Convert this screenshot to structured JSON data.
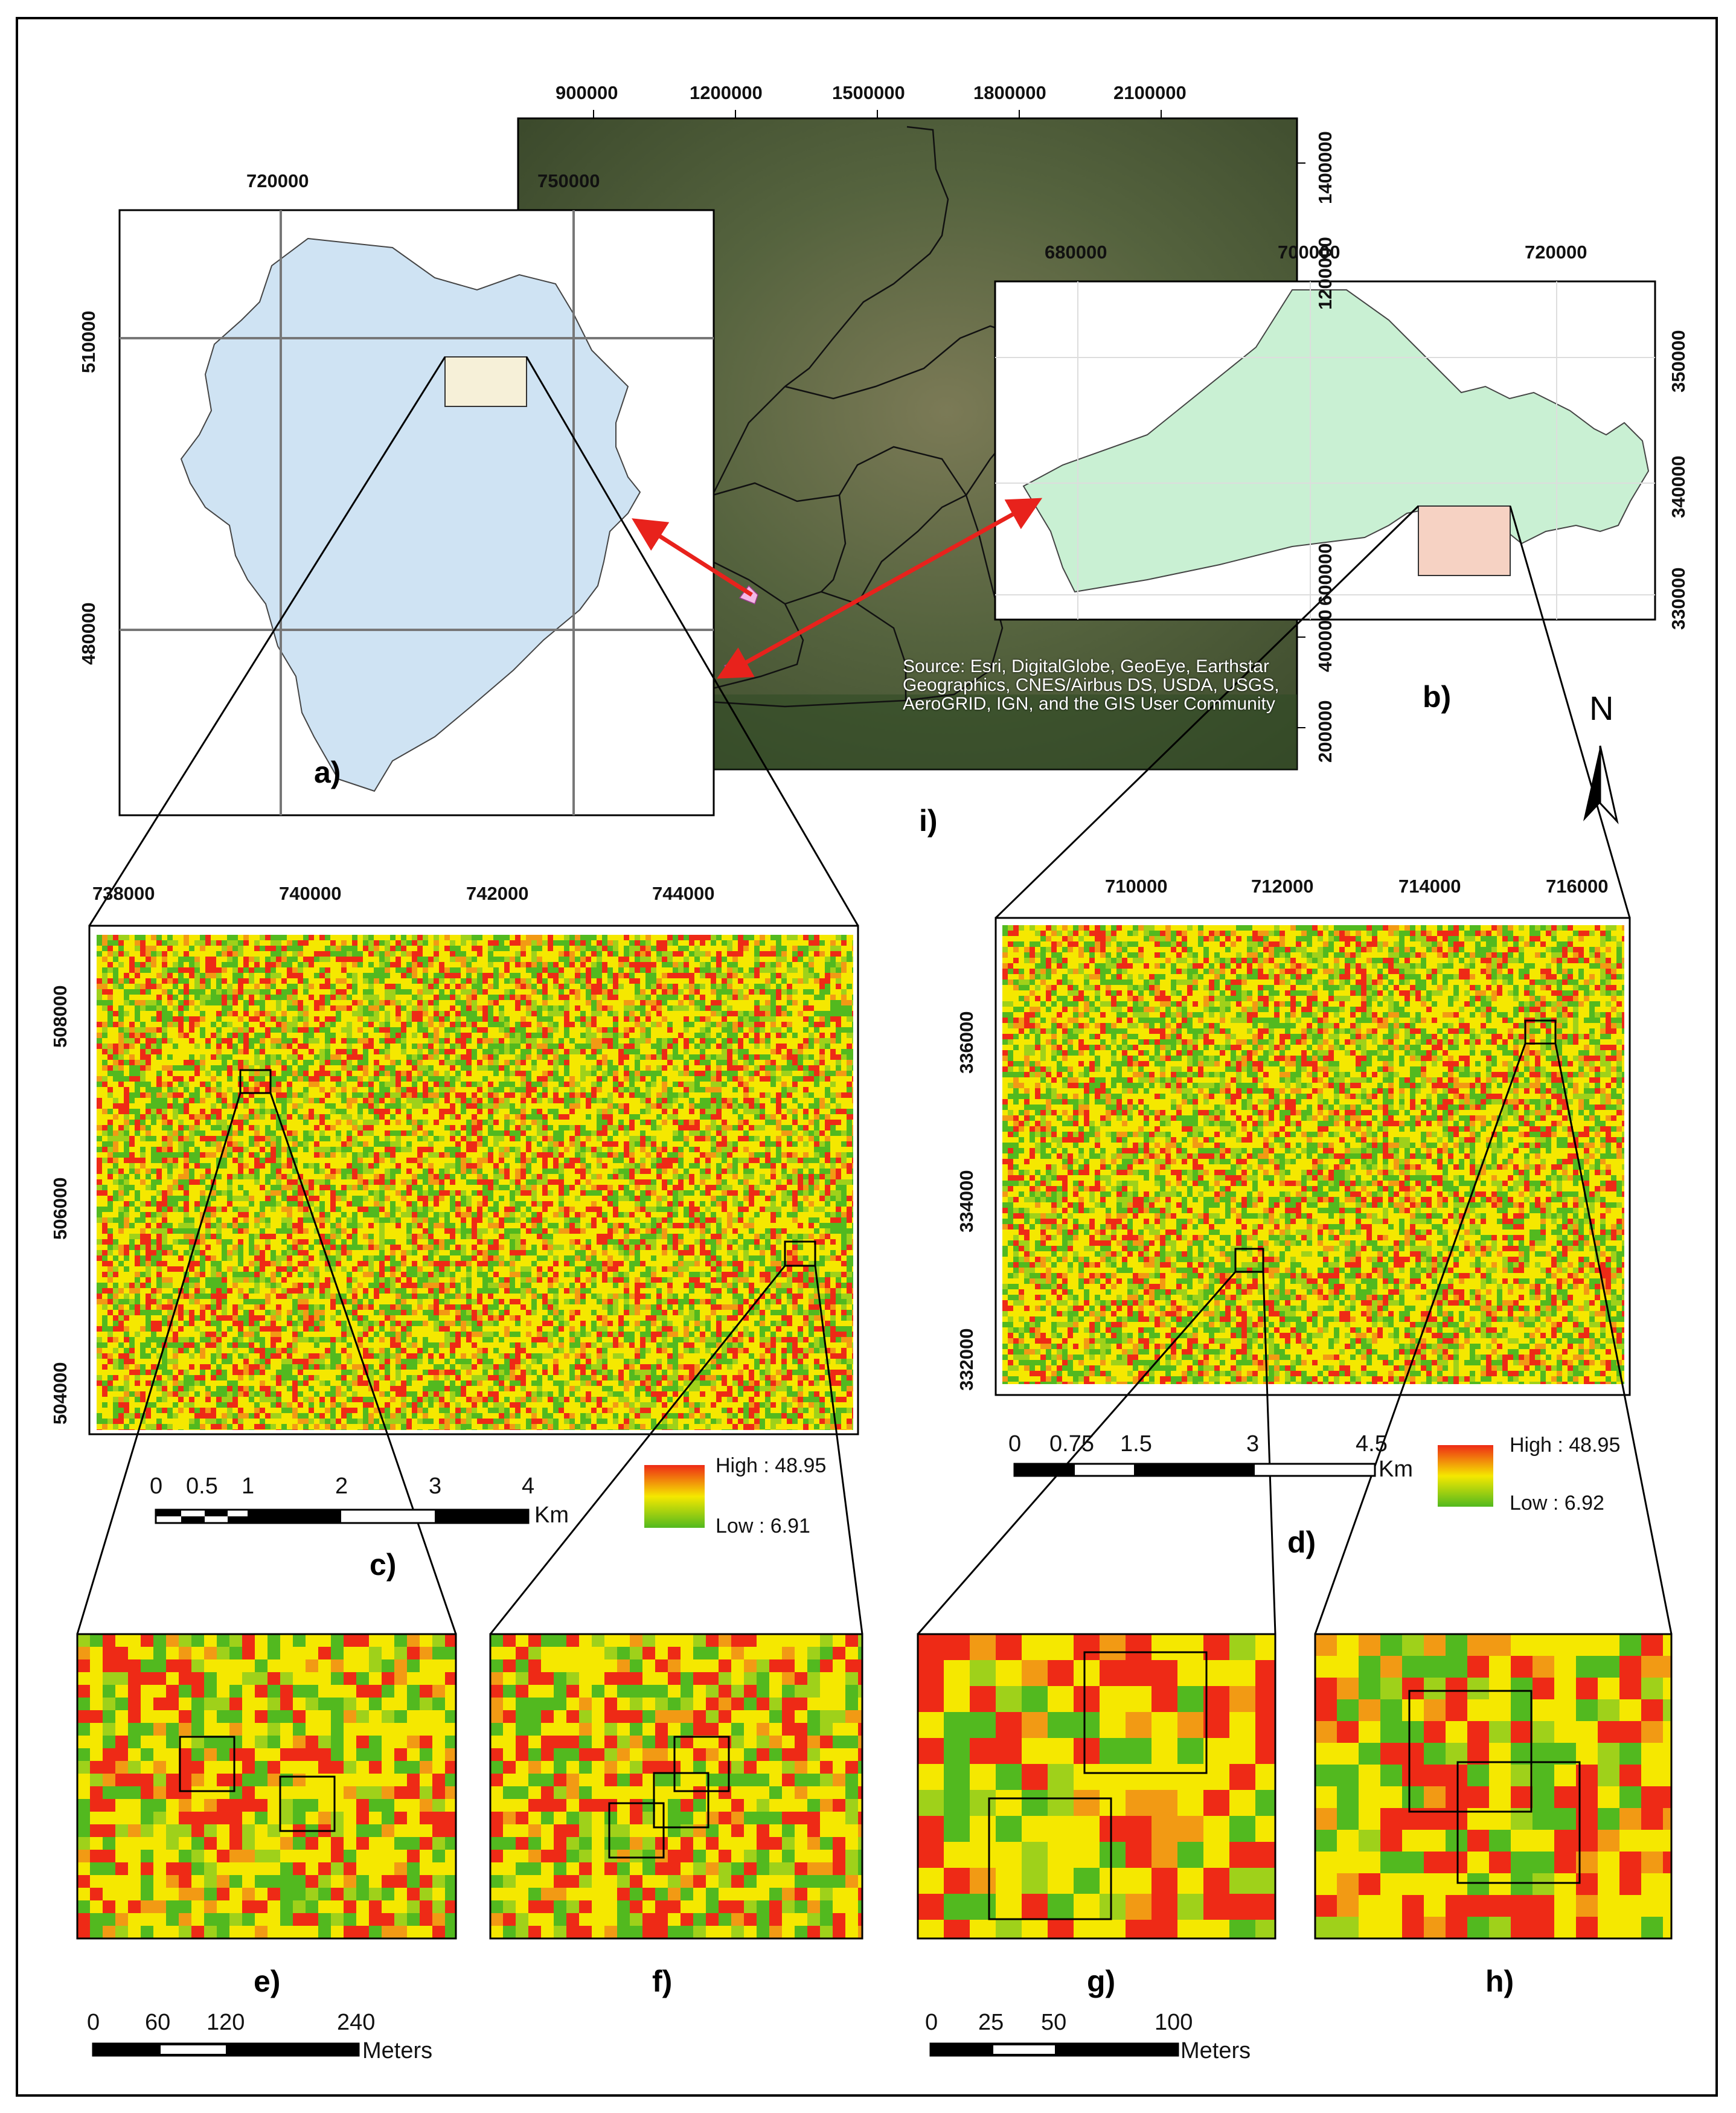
{
  "panels": {
    "a": "a)",
    "b": "b)",
    "c": "c)",
    "d": "d)",
    "e": "e)",
    "f": "f)",
    "g": "g)",
    "h": "h)",
    "i": "i)"
  },
  "north_label": "N",
  "source_text": "Source: Esri, DigitalGlobe, GeoEye, Earthstar Geographics, CNES/Airbus DS, USDA, USGS, AeroGRID, IGN, and the GIS User Community",
  "map_i": {
    "top_ticks": [
      "900000",
      "1200000",
      "1500000",
      "1800000",
      "2100000"
    ],
    "right_ticks": [
      "1400000",
      "1200000",
      "600000",
      "400000",
      "200000"
    ]
  },
  "map_a": {
    "top_ticks": [
      "720000",
      "750000"
    ],
    "left_ticks": [
      "510000",
      "480000"
    ]
  },
  "map_b": {
    "top_ticks": [
      "680000",
      "700000",
      "720000"
    ],
    "right_ticks": [
      "350000",
      "340000",
      "330000"
    ]
  },
  "map_c": {
    "top_ticks": [
      "738000",
      "740000",
      "742000",
      "744000"
    ],
    "left_ticks": [
      "508000",
      "506000",
      "504000"
    ],
    "legend": {
      "high": "High : 48.95",
      "low": "Low : 6.91"
    },
    "scale": {
      "ticks": [
        "0",
        "0.5",
        "1",
        "2",
        "3",
        "4"
      ],
      "unit": "Km"
    }
  },
  "map_d": {
    "top_ticks": [
      "710000",
      "712000",
      "714000",
      "716000"
    ],
    "left_ticks": [
      "336000",
      "334000",
      "332000"
    ],
    "legend": {
      "high": "High : 48.95",
      "low": "Low : 6.92"
    },
    "scale": {
      "ticks": [
        "0",
        "0.75",
        "1.5",
        "3",
        "4.5"
      ],
      "unit": "Km"
    }
  },
  "scale_ef": {
    "ticks": [
      "0",
      "60",
      "120",
      "240"
    ],
    "unit": "Meters"
  },
  "scale_gh": {
    "ticks": [
      "0",
      "25",
      "50",
      "100"
    ],
    "unit": "Meters"
  },
  "colors": {
    "satellite": "#4e5a3c",
    "ocean": "#1f3f7a",
    "region_a": "#cfe3f3",
    "region_b": "#c9f0d3",
    "inset_a": "#f6f0d8",
    "inset_b": "#f6d2c3",
    "arrow": "#e8221c",
    "raster_low": "#52b91f",
    "raster_mid": "#f5e800",
    "raster_high": "#ee2a16"
  }
}
